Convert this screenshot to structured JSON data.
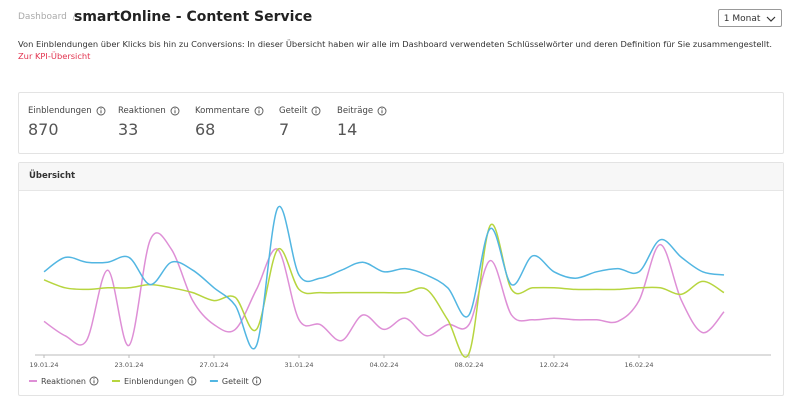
{
  "header": {
    "breadcrumb": "Dashboard",
    "separator": "/",
    "title": "smartOnline - Content Service",
    "period": "1 Monat"
  },
  "description": "Von Einblendungen über Klicks bis hin zu Conversions: In dieser Übersicht haben wir alle im Dashboard verwendeten Schlüsselwörter und deren Definition für Sie zusammengestellt.",
  "link": "Zur KPI-Übersicht",
  "kpis": [
    {
      "label": "Einblendungen",
      "value": 870
    },
    {
      "label": "Reaktionen",
      "value": 33
    },
    {
      "label": "Kommentare",
      "value": 68
    },
    {
      "label": "Geteilt",
      "value": 7
    },
    {
      "label": "Beiträge",
      "value": 14
    }
  ],
  "section_title": "Übersicht",
  "chart_data": {
    "type": "line",
    "ylim": [
      0,
      100
    ],
    "x": [
      "19.01.24",
      null,
      null,
      null,
      "23.01.24",
      null,
      null,
      null,
      "27.01.24",
      null,
      null,
      null,
      "31.01.24",
      null,
      null,
      null,
      "04.02.24",
      null,
      null,
      null,
      "08.02.24",
      null,
      null,
      null,
      "12.02.24",
      null,
      null,
      null,
      "16.02.24",
      null,
      null,
      null,
      null
    ],
    "series": [
      {
        "name": "Reaktionen",
        "color": "#de8fd6",
        "values": [
          21,
          12,
          9,
          53,
          6,
          72,
          66,
          34,
          19,
          16,
          41,
          66,
          22,
          19,
          9,
          25,
          16,
          23,
          12,
          19,
          19,
          59,
          25,
          22,
          23,
          22,
          22,
          21,
          34,
          69,
          34,
          14,
          27
        ]
      },
      {
        "name": "Einblendungen",
        "color": "#b7d53f",
        "values": [
          47,
          42,
          41,
          42,
          42,
          44,
          42,
          39,
          34,
          36,
          16,
          66,
          41,
          39,
          39,
          39,
          39,
          39,
          41,
          22,
          1,
          81,
          41,
          42,
          42,
          41,
          41,
          41,
          42,
          42,
          38,
          46,
          39
        ]
      },
      {
        "name": "Geteilt",
        "color": "#52b6e2",
        "values": [
          52,
          61,
          58,
          58,
          61,
          44,
          58,
          53,
          42,
          31,
          6,
          92,
          50,
          48,
          53,
          58,
          52,
          54,
          50,
          42,
          25,
          79,
          44,
          62,
          52,
          48,
          52,
          54,
          52,
          72,
          61,
          52,
          50
        ]
      }
    ]
  }
}
